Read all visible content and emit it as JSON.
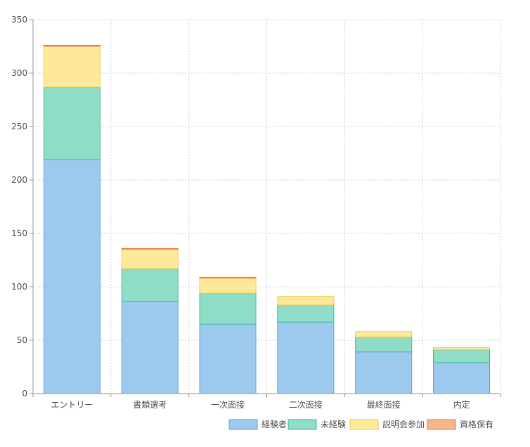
{
  "chart_data": {
    "type": "bar",
    "stacked": true,
    "categories": [
      "エントリー",
      "書類選考",
      "一次面接",
      "二次面接",
      "最終面接",
      "内定"
    ],
    "series": [
      {
        "name": "経験者",
        "values": [
          219,
          86,
          65,
          67,
          39,
          29
        ],
        "color": "#9ec9ef",
        "stroke": "#5ea4dd"
      },
      {
        "name": "未経験",
        "values": [
          68,
          31,
          29,
          16,
          14,
          12
        ],
        "color": "#8fdcc7",
        "stroke": "#3dbf9a"
      },
      {
        "name": "説明会参加",
        "values": [
          38,
          18,
          14,
          8,
          5,
          2
        ],
        "color": "#fde99a",
        "stroke": "#f2cd4c"
      },
      {
        "name": "資格保有",
        "values": [
          1,
          1,
          1,
          0,
          0,
          0
        ],
        "color": "#f7b58a",
        "stroke": "#e9863f"
      }
    ],
    "ylim": [
      0,
      350
    ],
    "yticks": [
      0,
      50,
      100,
      150,
      200,
      250,
      300,
      350
    ],
    "grid": true,
    "legend_position": "bottom-right",
    "title": "",
    "xlabel": "",
    "ylabel": ""
  }
}
